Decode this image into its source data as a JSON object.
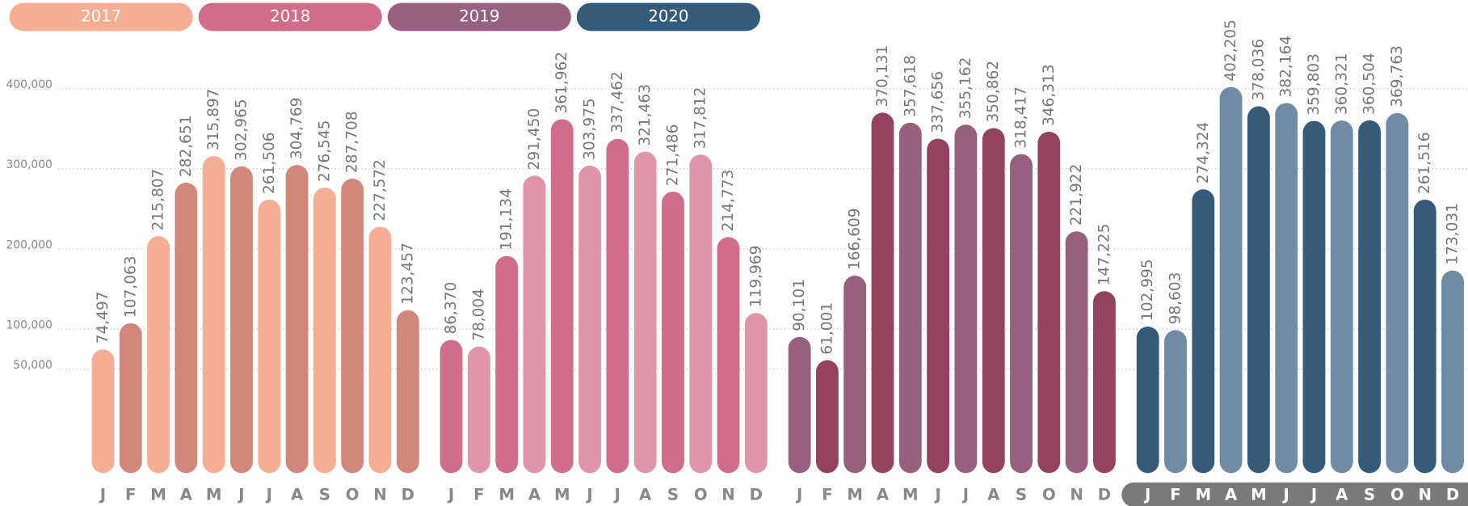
{
  "chart_data": {
    "type": "bar",
    "categories": [
      "J",
      "F",
      "M",
      "A",
      "M",
      "J",
      "J",
      "A",
      "S",
      "O",
      "N",
      "D"
    ],
    "series": [
      {
        "name": "2017",
        "color": "#f5ae93",
        "colors": [
          "#f5ae93",
          "#d1887a"
        ],
        "values": [
          74497,
          107063,
          215807,
          282651,
          315897,
          302965,
          261506,
          304769,
          276545,
          287708,
          227572,
          123457
        ],
        "value_labels": [
          "74,497",
          "107,063",
          "215,807",
          "282,651",
          "315,897",
          "302,965",
          "261,506",
          "304,769",
          "276,545",
          "287,708",
          "227,572",
          "123,457"
        ]
      },
      {
        "name": "2018",
        "color": "#d06d88",
        "colors": [
          "#d06d88",
          "#e096a8"
        ],
        "values": [
          86370,
          78004,
          191134,
          291450,
          361962,
          303975,
          337462,
          321463,
          271486,
          317812,
          214773,
          119969
        ],
        "value_labels": [
          "86,370",
          "78,004",
          "191,134",
          "291,450",
          "361,962",
          "303,975",
          "337,462",
          "321,463",
          "271,486",
          "317,812",
          "214,773",
          "119,969"
        ]
      },
      {
        "name": "2019",
        "color": "#975f80",
        "colors": [
          "#975f80",
          "#954260"
        ],
        "values": [
          90101,
          61001,
          166609,
          370131,
          357618,
          337656,
          355162,
          350862,
          318417,
          346313,
          221922,
          147225
        ],
        "value_labels": [
          "90,101",
          "61,001",
          "166,609",
          "370,131",
          "357,618",
          "337,656",
          "355,162",
          "350,862",
          "318,417",
          "346,313",
          "221,922",
          "147,225"
        ]
      },
      {
        "name": "2020",
        "color": "#345c7a",
        "colors": [
          "#345c7a",
          "#708ca4"
        ],
        "values": [
          102995,
          98603,
          274324,
          402205,
          378036,
          382164,
          359803,
          360321,
          360504,
          369763,
          261516,
          173031
        ],
        "value_labels": [
          "102,995",
          "98,603",
          "274,324",
          "402,205",
          "378,036",
          "382,164",
          "359,803",
          "360,321",
          "360,504",
          "369,763",
          "261,516",
          "173,031"
        ]
      }
    ],
    "ylim": [
      -80000,
      430000
    ],
    "yticks": [
      {
        "value": 50000,
        "label": "50,000"
      },
      {
        "value": 100000,
        "label": "100,000"
      },
      {
        "value": 200000,
        "label": "200,000"
      },
      {
        "value": 300000,
        "label": "300,000"
      },
      {
        "value": 400000,
        "label": "400,000"
      }
    ],
    "grid": true
  }
}
